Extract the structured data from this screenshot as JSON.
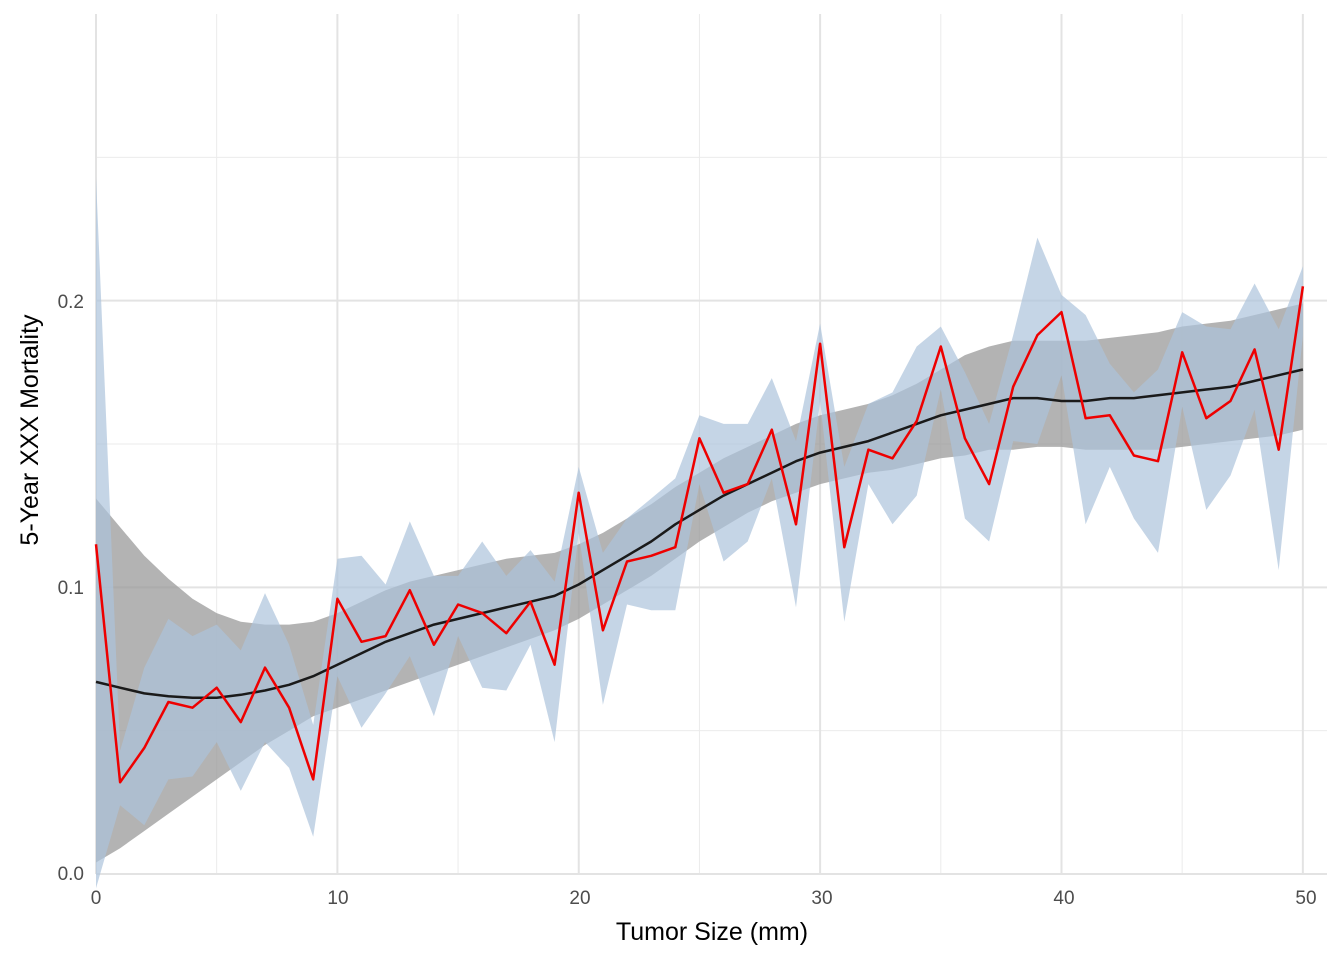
{
  "chart_data": {
    "type": "line",
    "title": "",
    "xlabel": "Tumor Size (mm)",
    "ylabel": "5-Year XXX Mortality",
    "xlim": [
      0,
      51
    ],
    "ylim": [
      0,
      0.3
    ],
    "x_ticks": [
      0,
      10,
      20,
      30,
      40,
      50
    ],
    "x_tick_labels": [
      "0",
      "10",
      "20",
      "30",
      "40",
      "50"
    ],
    "y_ticks": [
      0,
      0.1,
      0.2
    ],
    "y_tick_labels": [
      "0.0",
      "0.1",
      "0.2"
    ],
    "grid": true,
    "legend": "none",
    "x": [
      0,
      1,
      2,
      3,
      4,
      5,
      6,
      7,
      8,
      9,
      10,
      11,
      12,
      13,
      14,
      15,
      16,
      17,
      18,
      19,
      20,
      21,
      22,
      23,
      24,
      25,
      26,
      27,
      28,
      29,
      30,
      31,
      32,
      33,
      34,
      35,
      36,
      37,
      38,
      39,
      40,
      41,
      42,
      43,
      44,
      45,
      46,
      47,
      48,
      49,
      50
    ],
    "series": [
      {
        "kind": "smoothed",
        "color": "#1a1a1a",
        "values": [
          0.067,
          0.065,
          0.063,
          0.062,
          0.0615,
          0.0615,
          0.0625,
          0.064,
          0.066,
          0.069,
          0.073,
          0.077,
          0.081,
          0.084,
          0.087,
          0.089,
          0.091,
          0.093,
          0.095,
          0.097,
          0.101,
          0.106,
          0.111,
          0.116,
          0.122,
          0.127,
          0.132,
          0.136,
          0.14,
          0.144,
          0.147,
          0.149,
          0.151,
          0.154,
          0.157,
          0.16,
          0.162,
          0.164,
          0.166,
          0.166,
          0.165,
          0.165,
          0.166,
          0.166,
          0.167,
          0.168,
          0.169,
          0.17,
          0.172,
          0.174,
          0.176
        ],
        "lower": [
          0.004,
          0.009,
          0.015,
          0.021,
          0.027,
          0.033,
          0.039,
          0.045,
          0.05,
          0.055,
          0.058,
          0.061,
          0.064,
          0.067,
          0.07,
          0.073,
          0.076,
          0.079,
          0.082,
          0.085,
          0.089,
          0.094,
          0.099,
          0.104,
          0.11,
          0.116,
          0.121,
          0.126,
          0.13,
          0.133,
          0.136,
          0.138,
          0.14,
          0.141,
          0.143,
          0.145,
          0.146,
          0.148,
          0.148,
          0.149,
          0.149,
          0.148,
          0.148,
          0.148,
          0.148,
          0.149,
          0.15,
          0.151,
          0.152,
          0.153,
          0.155
        ],
        "upper": [
          0.131,
          0.121,
          0.111,
          0.103,
          0.096,
          0.091,
          0.088,
          0.087,
          0.087,
          0.088,
          0.091,
          0.095,
          0.099,
          0.102,
          0.104,
          0.106,
          0.108,
          0.11,
          0.111,
          0.112,
          0.115,
          0.119,
          0.124,
          0.129,
          0.135,
          0.14,
          0.145,
          0.149,
          0.153,
          0.157,
          0.16,
          0.162,
          0.164,
          0.167,
          0.171,
          0.176,
          0.181,
          0.184,
          0.186,
          0.186,
          0.186,
          0.186,
          0.187,
          0.188,
          0.189,
          0.191,
          0.192,
          0.193,
          0.195,
          0.197,
          0.199
        ],
        "band_color": "#999999"
      },
      {
        "kind": "observed",
        "color": "#ee0000",
        "values": [
          0.115,
          0.032,
          0.044,
          0.06,
          0.058,
          0.065,
          0.053,
          0.072,
          0.058,
          0.033,
          0.096,
          0.081,
          0.083,
          0.099,
          0.08,
          0.094,
          0.091,
          0.084,
          0.095,
          0.073,
          0.133,
          0.085,
          0.109,
          0.111,
          0.114,
          0.152,
          0.133,
          0.136,
          0.155,
          0.122,
          0.185,
          0.114,
          0.148,
          0.145,
          0.158,
          0.184,
          0.152,
          0.136,
          0.17,
          0.188,
          0.196,
          0.159,
          0.16,
          0.146,
          0.144,
          0.182,
          0.159,
          0.165,
          0.183,
          0.148,
          0.205
        ],
        "lower": [
          -0.005,
          0.024,
          0.017,
          0.033,
          0.034,
          0.046,
          0.029,
          0.046,
          0.037,
          0.013,
          0.069,
          0.051,
          0.063,
          0.076,
          0.055,
          0.083,
          0.065,
          0.064,
          0.08,
          0.046,
          0.119,
          0.059,
          0.094,
          0.092,
          0.092,
          0.136,
          0.109,
          0.116,
          0.138,
          0.093,
          0.165,
          0.088,
          0.136,
          0.122,
          0.132,
          0.169,
          0.124,
          0.116,
          0.151,
          0.15,
          0.174,
          0.122,
          0.142,
          0.124,
          0.112,
          0.163,
          0.127,
          0.139,
          0.162,
          0.106,
          0.188
        ],
        "upper": [
          0.243,
          0.043,
          0.072,
          0.089,
          0.083,
          0.087,
          0.078,
          0.098,
          0.08,
          0.052,
          0.11,
          0.111,
          0.101,
          0.123,
          0.104,
          0.104,
          0.116,
          0.104,
          0.113,
          0.102,
          0.142,
          0.112,
          0.124,
          0.131,
          0.138,
          0.16,
          0.157,
          0.157,
          0.173,
          0.151,
          0.192,
          0.142,
          0.164,
          0.168,
          0.184,
          0.191,
          0.175,
          0.157,
          0.188,
          0.222,
          0.202,
          0.195,
          0.178,
          0.168,
          0.176,
          0.196,
          0.191,
          0.19,
          0.206,
          0.19,
          0.212
        ],
        "band_color": "#adc3dc"
      }
    ]
  }
}
